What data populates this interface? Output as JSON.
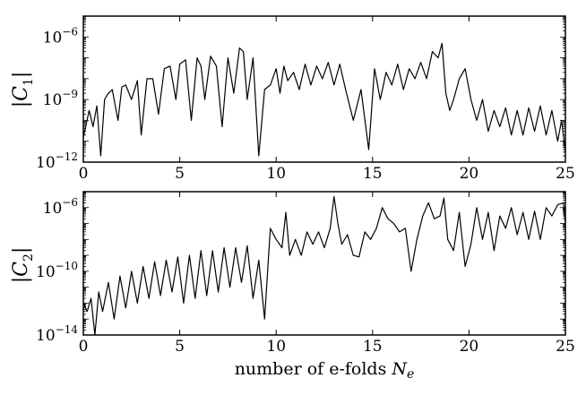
{
  "chart_data": [
    {
      "type": "line",
      "title": "",
      "xlabel": "",
      "ylabel": "|C_1|",
      "ylabel_parts": {
        "bars": "|",
        "letter": "C",
        "subscript": "1"
      },
      "yscale": "log",
      "xlim": [
        0,
        25
      ],
      "ylim": [
        1e-12,
        1e-05
      ],
      "xticks": [
        0,
        5,
        10,
        15,
        20,
        25
      ],
      "xtick_labels": [
        "0",
        "5",
        "10",
        "15",
        "20",
        "25"
      ],
      "yticks": [
        1e-12,
        1e-09,
        1e-06
      ],
      "ytick_labels": [
        {
          "base": "10",
          "exp": "−12"
        },
        {
          "base": "10",
          "exp": "−9"
        },
        {
          "base": "10",
          "exp": "−6"
        }
      ],
      "grid": false,
      "line_color": "#000000",
      "series": [
        {
          "x": [
            0,
            0.3,
            0.5,
            0.7,
            0.9,
            1.1,
            1.3,
            1.5,
            1.8,
            2.0,
            2.2,
            2.5,
            2.8,
            3.0,
            3.3,
            3.6,
            3.9,
            4.2,
            4.5,
            4.8,
            5.0,
            5.3,
            5.6,
            5.9,
            6.1,
            6.3,
            6.6,
            6.9,
            7.2,
            7.5,
            7.8,
            8.1,
            8.3,
            8.5,
            8.8,
            9.1,
            9.4,
            9.7,
            10.0,
            10.2,
            10.4,
            10.6,
            10.9,
            11.2,
            11.5,
            11.8,
            12.1,
            12.4,
            12.7,
            13.0,
            13.3,
            13.6,
            14.0,
            14.4,
            14.8,
            15.1,
            15.4,
            15.7,
            16.0,
            16.3,
            16.6,
            16.9,
            17.2,
            17.5,
            17.8,
            18.1,
            18.4,
            18.6,
            18.8,
            19.0,
            19.2,
            19.5,
            19.8,
            20.1,
            20.4,
            20.7,
            21.0,
            21.3,
            21.6,
            21.9,
            22.2,
            22.5,
            22.8,
            23.1,
            23.4,
            23.7,
            24.0,
            24.3,
            24.6,
            24.8,
            25.0
          ],
          "y": [
            1.5e-11,
            3e-10,
            5e-11,
            5e-10,
            2e-12,
            1e-09,
            2e-09,
            3e-09,
            1e-10,
            4e-09,
            5e-09,
            1e-09,
            8e-09,
            2e-11,
            1e-08,
            1e-08,
            2e-10,
            3e-08,
            4e-08,
            1e-09,
            5e-08,
            8e-08,
            1e-10,
            1e-07,
            4e-08,
            1e-09,
            1.2e-07,
            4e-08,
            5e-11,
            1e-07,
            2e-09,
            3e-07,
            2e-07,
            1e-09,
            1e-07,
            2e-12,
            3e-09,
            5e-09,
            3e-08,
            2e-09,
            4e-08,
            8e-09,
            2e-08,
            3e-09,
            5e-08,
            5e-09,
            4e-08,
            1e-08,
            6e-08,
            5e-09,
            5e-08,
            3e-09,
            1e-10,
            3e-09,
            4e-12,
            3e-08,
            1e-09,
            2e-08,
            5e-09,
            5e-08,
            3e-09,
            3e-08,
            1e-08,
            6e-08,
            1e-08,
            2e-07,
            1e-07,
            5e-07,
            2e-09,
            3e-10,
            1e-09,
            1e-08,
            3e-08,
            1e-09,
            1e-10,
            1e-09,
            3e-11,
            3e-10,
            5e-11,
            4e-10,
            2e-11,
            3e-10,
            2e-11,
            4e-10,
            3e-11,
            5e-10,
            2e-11,
            3e-10,
            1e-11,
            1e-10,
            3e-12
          ]
        }
      ]
    },
    {
      "type": "line",
      "title": "",
      "xlabel": "number of e-folds N_e",
      "xlabel_parts": {
        "text": "number of e-folds ",
        "var": "N",
        "subscript": "e"
      },
      "ylabel": "|C_2|",
      "ylabel_parts": {
        "bars": "|",
        "letter": "C",
        "subscript": "2"
      },
      "yscale": "log",
      "xlim": [
        0,
        25
      ],
      "ylim": [
        1e-14,
        1e-05
      ],
      "xticks": [
        0,
        5,
        10,
        15,
        20,
        25
      ],
      "xtick_labels": [
        "0",
        "5",
        "10",
        "15",
        "20",
        "25"
      ],
      "yticks": [
        1e-14,
        1e-10,
        1e-06
      ],
      "ytick_labels": [
        {
          "base": "10",
          "exp": "−14"
        },
        {
          "base": "10",
          "exp": "−10"
        },
        {
          "base": "10",
          "exp": "−6"
        }
      ],
      "grid": false,
      "line_color": "#000000",
      "series": [
        {
          "x": [
            0,
            0.2,
            0.4,
            0.6,
            0.8,
            1.0,
            1.3,
            1.6,
            1.9,
            2.2,
            2.5,
            2.8,
            3.1,
            3.4,
            3.7,
            4.0,
            4.3,
            4.6,
            4.9,
            5.2,
            5.5,
            5.8,
            6.1,
            6.4,
            6.7,
            7.0,
            7.3,
            7.6,
            7.9,
            8.2,
            8.5,
            8.8,
            9.1,
            9.4,
            9.7,
            10.0,
            10.3,
            10.5,
            10.7,
            11.0,
            11.3,
            11.6,
            11.9,
            12.2,
            12.5,
            12.8,
            13.0,
            13.2,
            13.4,
            13.7,
            14.0,
            14.3,
            14.6,
            14.9,
            15.2,
            15.5,
            15.8,
            16.1,
            16.4,
            16.7,
            17.0,
            17.3,
            17.6,
            17.9,
            18.2,
            18.5,
            18.7,
            18.9,
            19.2,
            19.5,
            19.8,
            20.1,
            20.4,
            20.7,
            21.0,
            21.3,
            21.6,
            21.9,
            22.2,
            22.5,
            22.8,
            23.1,
            23.4,
            23.7,
            24.0,
            24.3,
            24.6,
            24.9,
            25.0
          ],
          "y": [
            1e-12,
            3e-13,
            2e-12,
            1e-14,
            5e-12,
            3e-13,
            2e-11,
            1e-13,
            5e-11,
            5e-13,
            1e-10,
            1e-12,
            2e-10,
            2e-12,
            4e-10,
            3e-12,
            5e-10,
            5e-12,
            8e-10,
            1e-12,
            1e-09,
            2e-12,
            2e-09,
            3e-12,
            2e-09,
            5e-12,
            3e-09,
            1e-11,
            3e-09,
            2e-11,
            4e-09,
            2e-12,
            5e-10,
            1e-13,
            5e-08,
            1e-08,
            3e-09,
            5e-07,
            1e-09,
            1e-08,
            1e-09,
            3e-08,
            5e-09,
            3e-08,
            3e-09,
            5e-08,
            5e-06,
            1e-07,
            5e-09,
            2e-08,
            1e-09,
            8e-10,
            3e-08,
            1e-08,
            5e-08,
            1e-06,
            2e-07,
            1e-07,
            3e-08,
            5e-08,
            1e-10,
            1e-08,
            3e-07,
            2e-06,
            2e-07,
            3e-07,
            4e-06,
            1e-08,
            2e-09,
            5e-07,
            2e-10,
            5e-09,
            1e-06,
            1e-08,
            5e-07,
            2e-09,
            3e-07,
            5e-08,
            1e-06,
            2e-08,
            5e-07,
            1e-08,
            6e-07,
            1e-08,
            1e-06,
            3e-07,
            1.5e-06,
            2e-06,
            1e-07
          ]
        }
      ]
    }
  ]
}
